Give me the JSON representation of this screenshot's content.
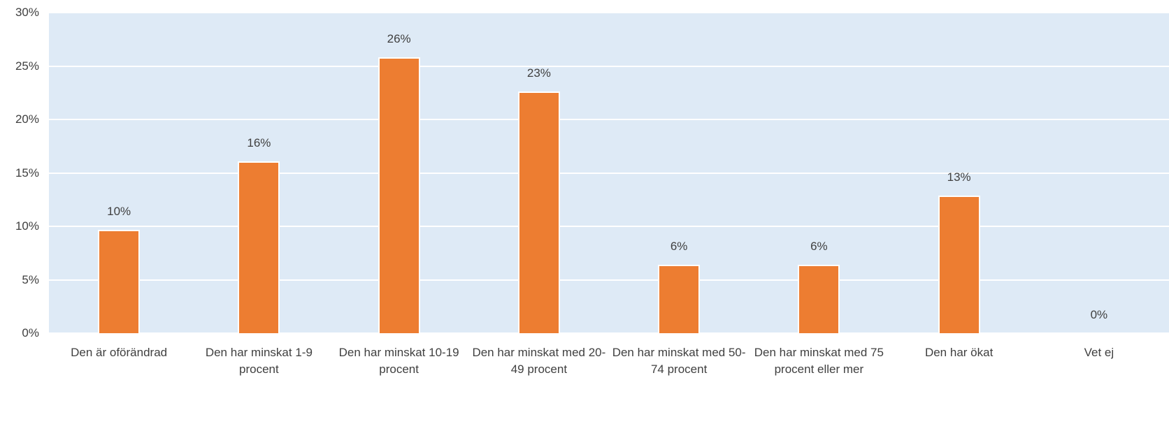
{
  "chart_data": {
    "type": "bar",
    "categories": [
      "Den är oförändrad",
      "Den har minskat 1-9 procent",
      "Den har minskat 10-19 procent",
      "Den har minskat med 20-49 procent",
      "Den har minskat med 50-74 procent",
      "Den har minskat med 75 procent eller mer",
      "Den har ökat",
      "Vet ej"
    ],
    "values": [
      9.7,
      16.1,
      25.8,
      22.6,
      6.4,
      6.4,
      12.9,
      0
    ],
    "value_labels": [
      "10%",
      "16%",
      "26%",
      "23%",
      "6%",
      "6%",
      "13%",
      "0%"
    ],
    "color": "#ed7d31",
    "ylim": [
      0,
      30
    ],
    "yticks": [
      {
        "value": 0,
        "label": "0%"
      },
      {
        "value": 5,
        "label": "5%"
      },
      {
        "value": 10,
        "label": "10%"
      },
      {
        "value": 15,
        "label": "15%"
      },
      {
        "value": 20,
        "label": "20%"
      },
      {
        "value": 25,
        "label": "25%"
      },
      {
        "value": 30,
        "label": "30%"
      }
    ],
    "grid": true
  }
}
